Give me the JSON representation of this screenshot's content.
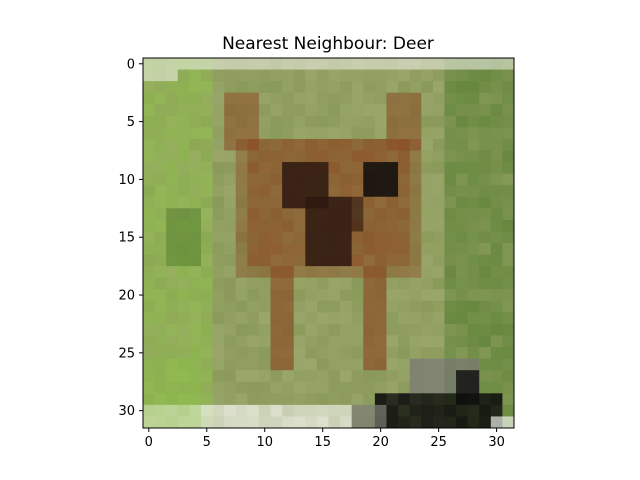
{
  "chart_data": {
    "type": "heatmap",
    "title": "Nearest Neighbour: Deer",
    "xlabel": "",
    "ylabel": "",
    "xlim": [
      -0.5,
      31.5
    ],
    "ylim": [
      31.5,
      -0.5
    ],
    "xticks": [
      0,
      5,
      10,
      15,
      20,
      25,
      30
    ],
    "yticks": [
      0,
      5,
      10,
      15,
      20,
      25,
      30
    ],
    "xtick_labels": [
      "0",
      "5",
      "10",
      "15",
      "20",
      "25",
      "30"
    ],
    "ytick_labels": [
      "0",
      "5",
      "10",
      "15",
      "20",
      "25",
      "30"
    ],
    "image_size": [
      32,
      32
    ],
    "grid": false,
    "palette": {
      "bg_grass": "#9aa66a",
      "light_grass": "#8fbf4a",
      "dark_grass": "#4f7a2a",
      "mid_grass": "#8a9a5a",
      "brown": "#8a4a22",
      "dark_brown": "#2c1810",
      "black": "#0c0c0c",
      "white": "#eef0e8",
      "gray": "#7a7a74"
    }
  }
}
